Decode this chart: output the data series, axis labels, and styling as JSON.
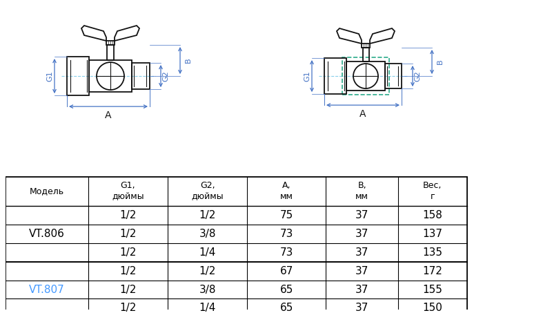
{
  "table_headers": [
    "Модель",
    "G1,\nдюймы",
    "G2,\nдюймы",
    "А,\nмм",
    "В,\nмм",
    "Вес,\nг"
  ],
  "table_rows": [
    [
      "VT.806",
      "1/2",
      "1/2",
      "75",
      "37",
      "158"
    ],
    [
      "",
      "1/2",
      "3/8",
      "73",
      "37",
      "137"
    ],
    [
      "",
      "1/2",
      "1/4",
      "73",
      "37",
      "135"
    ],
    [
      "VT.807",
      "1/2",
      "1/2",
      "67",
      "37",
      "172"
    ],
    [
      "",
      "1/2",
      "3/8",
      "65",
      "37",
      "155"
    ],
    [
      "",
      "1/2",
      "1/4",
      "65",
      "37",
      "150"
    ]
  ],
  "model_colors": {
    "VT.806": "#000000",
    "VT.807": "#4499ff"
  },
  "bg_color": "#ffffff",
  "blue": "#4472c4",
  "dark": "#111111",
  "light_blue": "#87ceeb",
  "teal": "#2aaa8a"
}
